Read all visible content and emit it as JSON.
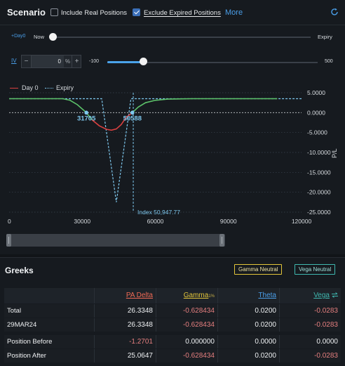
{
  "scenario": {
    "title": "Scenario",
    "include_real_positions": {
      "label": "Include Real Positions",
      "checked": false
    },
    "exclude_expired_positions": {
      "label": "Exclude Expired Positions",
      "checked": true
    },
    "more_label": "More",
    "time_slider": {
      "day_label": "+Day0",
      "now_label": "Now",
      "expiry_label": "Expiry",
      "value_fraction": 0.0
    },
    "iv": {
      "label": "IV",
      "minus": "−",
      "plus": "+",
      "value": "0",
      "unit": "%",
      "min_label": "-100",
      "max_label": "500",
      "slider_value": 0
    }
  },
  "chart_data": {
    "type": "line",
    "legend": [
      "Day 0",
      "Expiry"
    ],
    "x_ticks": [
      "0",
      "30000",
      "60000",
      "90000",
      "120000"
    ],
    "y_ticks": [
      "5.0000",
      "0.0000",
      "-5.0000",
      "-10.0000",
      "-15.0000",
      "-20.0000",
      "-25.0000"
    ],
    "ylabel": "P/L",
    "xlim": [
      0,
      120000
    ],
    "ylim": [
      -25,
      5
    ],
    "series": [
      {
        "name": "Day 0",
        "color_left": "#5cc26a",
        "color_right": "#5cc26a",
        "color_mid": "#d94040",
        "x": [
          0,
          22000,
          25000,
          28000,
          31705,
          34000,
          37000,
          40000,
          42000,
          44000,
          46000,
          48000,
          50588,
          53000,
          56000,
          60000,
          65000,
          75000,
          90000,
          110000
        ],
        "y": [
          3.5,
          3.5,
          3.1,
          2.0,
          0.0,
          -1.8,
          -3.3,
          -4.2,
          -4.4,
          -4.1,
          -3.0,
          -1.2,
          0.0,
          1.4,
          2.5,
          3.1,
          3.4,
          3.5,
          3.5,
          3.5
        ]
      },
      {
        "name": "Expiry",
        "color": "#7ec8ee",
        "x": [
          0,
          38000,
          44000,
          50000,
          120000
        ],
        "y": [
          3.5,
          3.5,
          -22.5,
          3.5,
          3.5
        ]
      }
    ],
    "breakevens": [
      {
        "x": 31705,
        "label": "31705"
      },
      {
        "x": 50588,
        "label": "50588"
      }
    ],
    "index": {
      "x": 50947.77,
      "label": "Index 50,947.77"
    }
  },
  "greeks": {
    "title": "Greeks",
    "gamma_neutral_label": "Gamma Neutral",
    "vega_neutral_label": "Vega Neutral",
    "columns": {
      "delta": "PA Delta",
      "gamma": "Gamma",
      "gamma_sub": "1%",
      "theta": "Theta",
      "vega": "Vega"
    },
    "rows": [
      {
        "name": "Total",
        "delta": "26.3348",
        "gamma": "-0.628434",
        "theta": "0.0200",
        "vega": "-0.0283"
      },
      {
        "name": "29MAR24",
        "delta": "26.3348",
        "gamma": "-0.628434",
        "theta": "0.0200",
        "vega": "-0.0283"
      },
      {
        "name": "Position Before",
        "delta": "-1.2701",
        "gamma": "0.000000",
        "theta": "0.0000",
        "vega": "0.0000"
      },
      {
        "name": "Position After",
        "delta": "25.0647",
        "gamma": "-0.628434",
        "theta": "0.0200",
        "vega": "-0.0283"
      }
    ]
  }
}
